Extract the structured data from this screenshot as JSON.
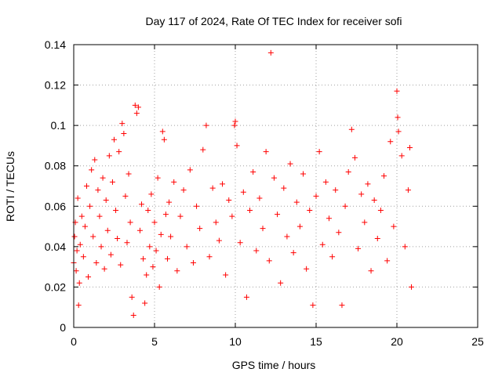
{
  "chart_data": {
    "type": "scatter",
    "title": "Day 117 of 2024, Rate Of TEC Index for receiver sofi",
    "xlabel": "GPS time / hours",
    "ylabel": "ROTI / TECUs",
    "xlim": [
      0,
      25
    ],
    "ylim": [
      0,
      0.14
    ],
    "x_ticks": [
      0,
      5,
      10,
      15,
      20,
      25
    ],
    "x_tick_labels": [
      "0",
      "5",
      "10",
      "15",
      "20",
      "25"
    ],
    "y_ticks": [
      0,
      0.02,
      0.04,
      0.06,
      0.08,
      0.1,
      0.12,
      0.14
    ],
    "y_tick_labels": [
      "0",
      "0.02",
      "0.04",
      "0.06",
      "0.08",
      "0.1",
      "0.12",
      "0.14"
    ],
    "grid": true,
    "marker": "plus",
    "colors": {
      "points": "#ff0000",
      "grid": "#a0a0a0",
      "axes": "#000000"
    },
    "series": [
      {
        "points": [
          [
            0.0,
            0.032
          ],
          [
            0.05,
            0.045
          ],
          [
            0.1,
            0.052
          ],
          [
            0.15,
            0.028
          ],
          [
            0.2,
            0.038
          ],
          [
            0.25,
            0.064
          ],
          [
            0.3,
            0.011
          ],
          [
            0.35,
            0.022
          ],
          [
            0.4,
            0.041
          ],
          [
            0.5,
            0.055
          ],
          [
            0.6,
            0.035
          ],
          [
            0.7,
            0.05
          ],
          [
            0.8,
            0.07
          ],
          [
            0.9,
            0.025
          ],
          [
            1.0,
            0.06
          ],
          [
            1.1,
            0.078
          ],
          [
            1.2,
            0.045
          ],
          [
            1.3,
            0.083
          ],
          [
            1.4,
            0.032
          ],
          [
            1.5,
            0.068
          ],
          [
            1.6,
            0.055
          ],
          [
            1.7,
            0.04
          ],
          [
            1.8,
            0.074
          ],
          [
            1.9,
            0.029
          ],
          [
            2.0,
            0.063
          ],
          [
            2.1,
            0.048
          ],
          [
            2.2,
            0.085
          ],
          [
            2.3,
            0.036
          ],
          [
            2.4,
            0.072
          ],
          [
            2.5,
            0.093
          ],
          [
            2.6,
            0.058
          ],
          [
            2.7,
            0.044
          ],
          [
            2.8,
            0.087
          ],
          [
            2.9,
            0.031
          ],
          [
            3.0,
            0.101
          ],
          [
            3.1,
            0.096
          ],
          [
            3.2,
            0.065
          ],
          [
            3.3,
            0.042
          ],
          [
            3.4,
            0.076
          ],
          [
            3.5,
            0.052
          ],
          [
            3.6,
            0.015
          ],
          [
            3.7,
            0.006
          ],
          [
            3.8,
            0.11
          ],
          [
            3.9,
            0.106
          ],
          [
            4.0,
            0.109
          ],
          [
            4.1,
            0.048
          ],
          [
            4.2,
            0.061
          ],
          [
            4.3,
            0.034
          ],
          [
            4.4,
            0.012
          ],
          [
            4.5,
            0.026
          ],
          [
            4.6,
            0.058
          ],
          [
            4.7,
            0.04
          ],
          [
            4.8,
            0.066
          ],
          [
            4.9,
            0.03
          ],
          [
            5.0,
            0.052
          ],
          [
            5.1,
            0.038
          ],
          [
            5.2,
            0.074
          ],
          [
            5.3,
            0.02
          ],
          [
            5.4,
            0.046
          ],
          [
            5.5,
            0.097
          ],
          [
            5.6,
            0.093
          ],
          [
            5.7,
            0.056
          ],
          [
            5.8,
            0.034
          ],
          [
            5.9,
            0.062
          ],
          [
            6.0,
            0.045
          ],
          [
            6.2,
            0.072
          ],
          [
            6.4,
            0.028
          ],
          [
            6.6,
            0.055
          ],
          [
            6.8,
            0.068
          ],
          [
            7.0,
            0.04
          ],
          [
            7.2,
            0.078
          ],
          [
            7.4,
            0.032
          ],
          [
            7.6,
            0.06
          ],
          [
            7.8,
            0.049
          ],
          [
            8.0,
            0.088
          ],
          [
            8.2,
            0.1
          ],
          [
            8.4,
            0.035
          ],
          [
            8.6,
            0.069
          ],
          [
            8.8,
            0.052
          ],
          [
            9.0,
            0.043
          ],
          [
            9.2,
            0.071
          ],
          [
            9.4,
            0.026
          ],
          [
            9.6,
            0.063
          ],
          [
            9.8,
            0.055
          ],
          [
            9.95,
            0.1
          ],
          [
            10.0,
            0.102
          ],
          [
            10.1,
            0.09
          ],
          [
            10.3,
            0.042
          ],
          [
            10.5,
            0.067
          ],
          [
            10.7,
            0.015
          ],
          [
            10.9,
            0.058
          ],
          [
            11.1,
            0.077
          ],
          [
            11.3,
            0.038
          ],
          [
            11.5,
            0.064
          ],
          [
            11.7,
            0.049
          ],
          [
            11.9,
            0.087
          ],
          [
            12.1,
            0.033
          ],
          [
            12.2,
            0.136
          ],
          [
            12.4,
            0.074
          ],
          [
            12.6,
            0.056
          ],
          [
            12.8,
            0.022
          ],
          [
            13.0,
            0.069
          ],
          [
            13.2,
            0.045
          ],
          [
            13.4,
            0.081
          ],
          [
            13.6,
            0.037
          ],
          [
            13.8,
            0.062
          ],
          [
            14.0,
            0.05
          ],
          [
            14.2,
            0.076
          ],
          [
            14.4,
            0.029
          ],
          [
            14.6,
            0.058
          ],
          [
            14.8,
            0.011
          ],
          [
            15.0,
            0.065
          ],
          [
            15.2,
            0.087
          ],
          [
            15.4,
            0.041
          ],
          [
            15.6,
            0.072
          ],
          [
            15.8,
            0.054
          ],
          [
            16.0,
            0.035
          ],
          [
            16.2,
            0.068
          ],
          [
            16.4,
            0.047
          ],
          [
            16.6,
            0.011
          ],
          [
            16.8,
            0.06
          ],
          [
            17.0,
            0.077
          ],
          [
            17.2,
            0.098
          ],
          [
            17.4,
            0.084
          ],
          [
            17.6,
            0.039
          ],
          [
            17.8,
            0.066
          ],
          [
            18.0,
            0.052
          ],
          [
            18.2,
            0.071
          ],
          [
            18.4,
            0.028
          ],
          [
            18.6,
            0.063
          ],
          [
            18.8,
            0.044
          ],
          [
            19.0,
            0.058
          ],
          [
            19.2,
            0.075
          ],
          [
            19.4,
            0.033
          ],
          [
            19.6,
            0.092
          ],
          [
            19.8,
            0.05
          ],
          [
            20.0,
            0.117
          ],
          [
            20.05,
            0.104
          ],
          [
            20.1,
            0.097
          ],
          [
            20.3,
            0.085
          ],
          [
            20.5,
            0.04
          ],
          [
            20.7,
            0.068
          ],
          [
            20.8,
            0.089
          ],
          [
            20.9,
            0.02
          ]
        ]
      }
    ]
  }
}
